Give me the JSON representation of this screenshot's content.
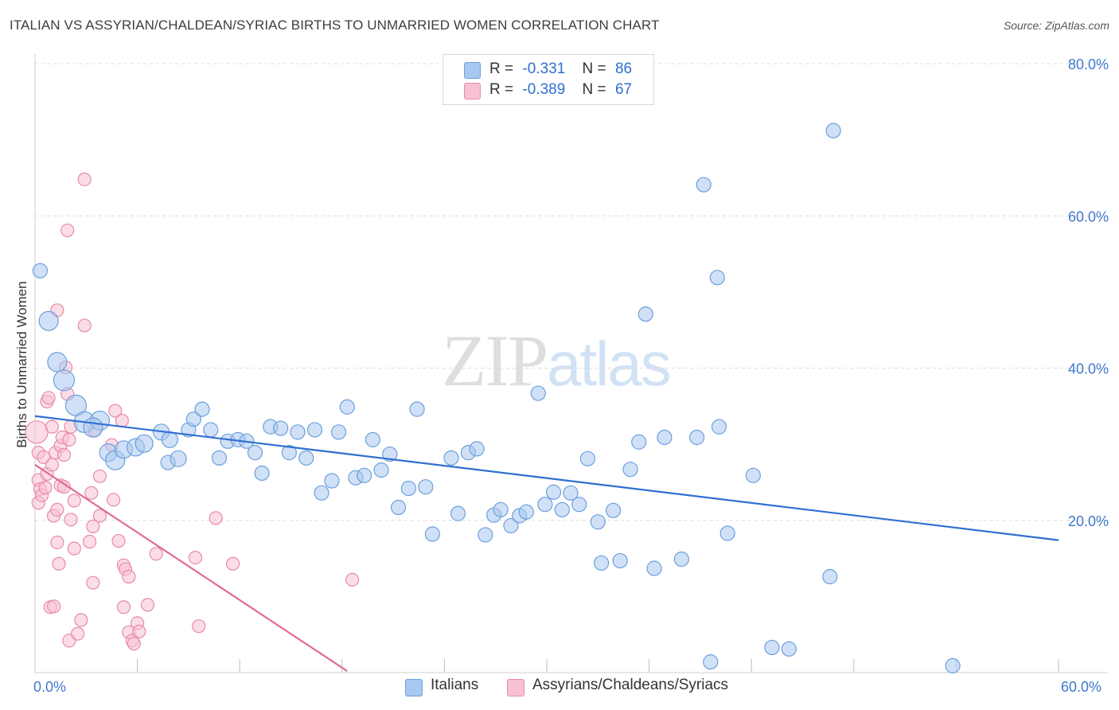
{
  "title": "ITALIAN VS ASSYRIAN/CHALDEAN/SYRIAC BIRTHS TO UNMARRIED WOMEN CORRELATION CHART",
  "source": "Source: ZipAtlas.com",
  "watermark": {
    "zip": "ZIP",
    "atlas": "atlas"
  },
  "colors": {
    "blue_fill": "#a9c8f0",
    "blue_stroke": "#6c9fdc",
    "blue_line": "#2f6fd1",
    "pink_fill": "#f7c1d1",
    "pink_stroke": "#e88aa8",
    "pink_line": "#e06b96",
    "grid": "#dcdcdc",
    "tick_text": "#3f78cc"
  },
  "legend": {
    "rows": [
      {
        "r_label": "R =",
        "r_value": "-0.331",
        "n_label": "N =",
        "n_value": "86"
      },
      {
        "r_label": "R =",
        "r_value": "-0.389",
        "n_label": "N =",
        "n_value": "67"
      }
    ]
  },
  "bottom_legend": {
    "italians": "Italians",
    "assyrians": "Assyrians/Chaldeans/Syriacs"
  },
  "chart_data": {
    "type": "scatter",
    "xlabel": "",
    "ylabel": "Births to Unmarried Women",
    "xlim": [
      0,
      60
    ],
    "ylim": [
      0,
      80
    ],
    "x_tick_labels": [
      "0.0%",
      "60.0%"
    ],
    "y_tick_labels": [
      "20.0%",
      "40.0%",
      "60.0%",
      "80.0%"
    ],
    "y_ticks": [
      20,
      40,
      60,
      80
    ],
    "grid": true,
    "series": [
      {
        "name": "Italians",
        "r": -0.331,
        "n": 86,
        "trend": {
          "x": [
            0,
            60
          ],
          "y": [
            33.7,
            17.4
          ]
        },
        "points": [
          [
            0.3,
            52.8,
            9
          ],
          [
            0.8,
            46.2,
            12
          ],
          [
            1.3,
            40.8,
            12
          ],
          [
            1.7,
            38.4,
            13
          ],
          [
            2.4,
            35.1,
            13
          ],
          [
            2.9,
            32.9,
            13
          ],
          [
            3.8,
            33.1,
            12
          ],
          [
            3.4,
            32.2,
            12
          ],
          [
            4.3,
            28.9,
            11
          ],
          [
            4.7,
            27.9,
            12
          ],
          [
            5.2,
            29.3,
            11
          ],
          [
            5.9,
            29.6,
            11
          ],
          [
            6.4,
            30.1,
            11
          ],
          [
            7.4,
            31.6,
            10
          ],
          [
            7.9,
            30.6,
            10
          ],
          [
            7.8,
            27.6,
            9
          ],
          [
            8.4,
            28.1,
            10
          ],
          [
            9.0,
            31.9,
            9
          ],
          [
            9.3,
            33.3,
            9
          ],
          [
            9.8,
            34.6,
            9
          ],
          [
            10.3,
            31.9,
            9
          ],
          [
            10.8,
            28.2,
            9
          ],
          [
            11.3,
            30.4,
            9
          ],
          [
            11.9,
            30.6,
            9
          ],
          [
            12.4,
            30.4,
            9
          ],
          [
            12.9,
            28.9,
            9
          ],
          [
            13.3,
            26.2,
            9
          ],
          [
            13.8,
            32.3,
            9
          ],
          [
            14.4,
            32.1,
            9
          ],
          [
            14.9,
            28.9,
            9
          ],
          [
            15.4,
            31.6,
            9
          ],
          [
            15.9,
            28.2,
            9
          ],
          [
            16.4,
            31.9,
            9
          ],
          [
            16.8,
            23.6,
            9
          ],
          [
            17.4,
            25.2,
            9
          ],
          [
            17.8,
            31.6,
            9
          ],
          [
            18.3,
            34.9,
            9
          ],
          [
            18.8,
            25.6,
            9
          ],
          [
            19.3,
            25.9,
            9
          ],
          [
            19.8,
            30.6,
            9
          ],
          [
            20.3,
            26.6,
            9
          ],
          [
            20.8,
            28.7,
            9
          ],
          [
            21.3,
            21.7,
            9
          ],
          [
            21.9,
            24.2,
            9
          ],
          [
            22.4,
            34.6,
            9
          ],
          [
            22.9,
            24.4,
            9
          ],
          [
            23.3,
            18.2,
            9
          ],
          [
            24.4,
            28.2,
            9
          ],
          [
            24.8,
            20.9,
            9
          ],
          [
            25.4,
            28.9,
            9
          ],
          [
            25.9,
            29.4,
            9
          ],
          [
            26.4,
            18.1,
            9
          ],
          [
            26.9,
            20.7,
            9
          ],
          [
            27.3,
            21.4,
            9
          ],
          [
            27.9,
            19.3,
            9
          ],
          [
            28.4,
            20.6,
            9
          ],
          [
            28.8,
            21.1,
            9
          ],
          [
            29.5,
            36.7,
            9
          ],
          [
            29.9,
            22.1,
            9
          ],
          [
            30.4,
            23.7,
            9
          ],
          [
            30.9,
            21.4,
            9
          ],
          [
            31.4,
            23.6,
            9
          ],
          [
            31.9,
            22.1,
            9
          ],
          [
            32.4,
            28.1,
            9
          ],
          [
            33.0,
            19.8,
            9
          ],
          [
            33.2,
            14.4,
            9
          ],
          [
            33.9,
            21.3,
            9
          ],
          [
            34.3,
            14.7,
            9
          ],
          [
            34.9,
            26.7,
            9
          ],
          [
            35.4,
            30.3,
            9
          ],
          [
            35.8,
            47.1,
            9
          ],
          [
            36.3,
            13.7,
            9
          ],
          [
            36.9,
            30.9,
            9
          ],
          [
            37.9,
            14.9,
            9
          ],
          [
            38.8,
            30.9,
            9
          ],
          [
            39.2,
            64.1,
            9
          ],
          [
            39.6,
            1.4,
            9
          ],
          [
            40.1,
            32.3,
            9
          ],
          [
            40.6,
            18.3,
            9
          ],
          [
            40.0,
            51.9,
            9
          ],
          [
            42.1,
            25.9,
            9
          ],
          [
            43.2,
            3.3,
            9
          ],
          [
            44.2,
            3.1,
            9
          ],
          [
            46.6,
            12.6,
            9
          ],
          [
            46.8,
            71.2,
            9
          ],
          [
            53.8,
            0.9,
            9
          ]
        ]
      },
      {
        "name": "Assyrians/Chaldeans/Syriacs",
        "r": -0.389,
        "n": 67,
        "trend": {
          "x": [
            0,
            18.3
          ],
          "y": [
            27.3,
            0.2
          ]
        },
        "points": [
          [
            0.1,
            31.6,
            14
          ],
          [
            0.2,
            28.9,
            8
          ],
          [
            0.2,
            25.3,
            8
          ],
          [
            0.2,
            22.3,
            8
          ],
          [
            0.3,
            24.1,
            8
          ],
          [
            0.4,
            23.3,
            8
          ],
          [
            0.5,
            28.3,
            8
          ],
          [
            0.6,
            24.3,
            8
          ],
          [
            0.7,
            26.1,
            8
          ],
          [
            0.7,
            35.6,
            8
          ],
          [
            0.8,
            36.1,
            8
          ],
          [
            0.9,
            8.6,
            8
          ],
          [
            1.0,
            27.3,
            8
          ],
          [
            1.0,
            32.3,
            8
          ],
          [
            1.1,
            20.6,
            8
          ],
          [
            1.1,
            8.7,
            8
          ],
          [
            1.2,
            28.9,
            8
          ],
          [
            1.3,
            21.4,
            8
          ],
          [
            1.3,
            47.6,
            8
          ],
          [
            1.3,
            17.1,
            8
          ],
          [
            1.4,
            14.3,
            8
          ],
          [
            1.5,
            29.8,
            8
          ],
          [
            1.6,
            30.9,
            8
          ],
          [
            1.5,
            24.6,
            8
          ],
          [
            1.7,
            28.6,
            8
          ],
          [
            1.8,
            40.1,
            8
          ],
          [
            1.9,
            36.6,
            8
          ],
          [
            1.9,
            58.1,
            8
          ],
          [
            2.0,
            30.6,
            8
          ],
          [
            2.0,
            4.2,
            8
          ],
          [
            2.1,
            32.3,
            8
          ],
          [
            2.1,
            20.1,
            8
          ],
          [
            2.3,
            16.3,
            8
          ],
          [
            2.3,
            22.6,
            8
          ],
          [
            2.5,
            5.1,
            8
          ],
          [
            2.7,
            6.9,
            8
          ],
          [
            2.9,
            64.8,
            8
          ],
          [
            2.9,
            45.6,
            8
          ],
          [
            3.2,
            17.2,
            8
          ],
          [
            3.3,
            23.6,
            8
          ],
          [
            3.4,
            11.8,
            8
          ],
          [
            3.4,
            19.2,
            8
          ],
          [
            3.5,
            31.8,
            8
          ],
          [
            3.8,
            25.8,
            8
          ],
          [
            3.8,
            20.6,
            8
          ],
          [
            4.5,
            29.9,
            8
          ],
          [
            4.6,
            22.7,
            8
          ],
          [
            4.7,
            34.4,
            8
          ],
          [
            4.9,
            17.3,
            8
          ],
          [
            5.1,
            33.1,
            8
          ],
          [
            5.2,
            14.1,
            8
          ],
          [
            5.2,
            8.6,
            8
          ],
          [
            5.3,
            13.6,
            8
          ],
          [
            5.5,
            5.3,
            8
          ],
          [
            5.5,
            12.6,
            8
          ],
          [
            5.7,
            4.2,
            8
          ],
          [
            5.8,
            3.8,
            8
          ],
          [
            6.0,
            6.5,
            8
          ],
          [
            6.1,
            5.4,
            8
          ],
          [
            6.6,
            8.9,
            8
          ],
          [
            7.1,
            15.6,
            8
          ],
          [
            9.4,
            15.1,
            8
          ],
          [
            9.6,
            6.1,
            8
          ],
          [
            10.6,
            20.3,
            8
          ],
          [
            11.6,
            14.3,
            8
          ],
          [
            18.6,
            12.2,
            8
          ],
          [
            1.7,
            24.4,
            8
          ]
        ]
      }
    ]
  }
}
